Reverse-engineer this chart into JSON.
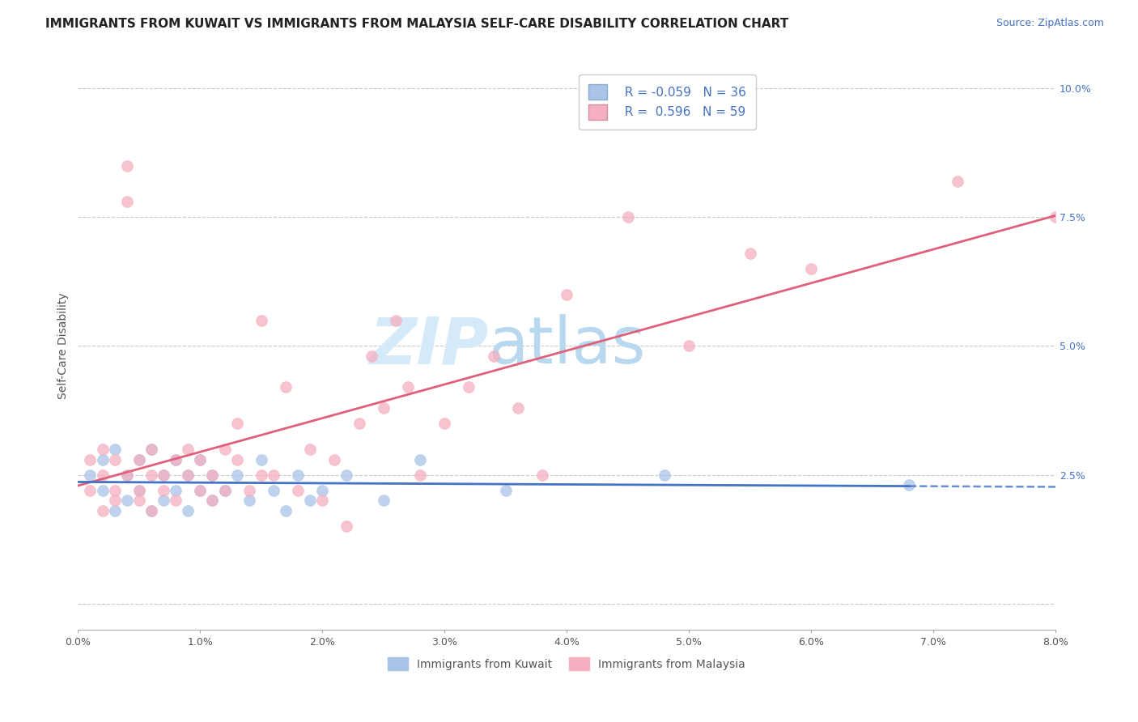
{
  "title": "IMMIGRANTS FROM KUWAIT VS IMMIGRANTS FROM MALAYSIA SELF-CARE DISABILITY CORRELATION CHART",
  "source_text": "Source: ZipAtlas.com",
  "ylabel": "Self-Care Disability",
  "xlim": [
    0.0,
    0.08
  ],
  "ylim": [
    -0.005,
    0.105
  ],
  "yticks": [
    0.0,
    0.025,
    0.05,
    0.075,
    0.1
  ],
  "ytick_labels": [
    "",
    "2.5%",
    "5.0%",
    "7.5%",
    "10.0%"
  ],
  "xticks": [
    0.0,
    0.01,
    0.02,
    0.03,
    0.04,
    0.05,
    0.06,
    0.07,
    0.08
  ],
  "xtick_labels": [
    "0.0%",
    "1.0%",
    "2.0%",
    "3.0%",
    "4.0%",
    "5.0%",
    "6.0%",
    "7.0%",
    "8.0%"
  ],
  "kuwait_R": -0.059,
  "kuwait_N": 36,
  "malaysia_R": 0.596,
  "malaysia_N": 59,
  "kuwait_color": "#aac4e8",
  "malaysia_color": "#f5afc0",
  "kuwait_line_color": "#4472c4",
  "malaysia_line_color": "#e0607a",
  "background_color": "#ffffff",
  "grid_color": "#cccccc",
  "watermark_color": "#d5eaf8",
  "legend_color": "#4472c4",
  "kuwait_x": [
    0.001,
    0.002,
    0.002,
    0.003,
    0.003,
    0.004,
    0.004,
    0.005,
    0.005,
    0.006,
    0.006,
    0.007,
    0.007,
    0.008,
    0.008,
    0.009,
    0.009,
    0.01,
    0.01,
    0.011,
    0.011,
    0.012,
    0.013,
    0.014,
    0.015,
    0.016,
    0.017,
    0.018,
    0.019,
    0.02,
    0.022,
    0.025,
    0.028,
    0.035,
    0.048,
    0.068
  ],
  "kuwait_y": [
    0.025,
    0.028,
    0.022,
    0.03,
    0.018,
    0.025,
    0.02,
    0.028,
    0.022,
    0.03,
    0.018,
    0.025,
    0.02,
    0.022,
    0.028,
    0.025,
    0.018,
    0.022,
    0.028,
    0.025,
    0.02,
    0.022,
    0.025,
    0.02,
    0.028,
    0.022,
    0.018,
    0.025,
    0.02,
    0.022,
    0.025,
    0.02,
    0.028,
    0.022,
    0.025,
    0.023
  ],
  "malaysia_x": [
    0.001,
    0.001,
    0.002,
    0.002,
    0.002,
    0.003,
    0.003,
    0.003,
    0.004,
    0.004,
    0.004,
    0.005,
    0.005,
    0.005,
    0.006,
    0.006,
    0.006,
    0.007,
    0.007,
    0.008,
    0.008,
    0.009,
    0.009,
    0.01,
    0.01,
    0.011,
    0.011,
    0.012,
    0.012,
    0.013,
    0.013,
    0.014,
    0.015,
    0.015,
    0.016,
    0.017,
    0.018,
    0.019,
    0.02,
    0.021,
    0.022,
    0.023,
    0.024,
    0.025,
    0.026,
    0.027,
    0.028,
    0.03,
    0.032,
    0.034,
    0.036,
    0.038,
    0.04,
    0.045,
    0.05,
    0.055,
    0.06,
    0.072,
    0.08
  ],
  "malaysia_y": [
    0.022,
    0.028,
    0.025,
    0.018,
    0.03,
    0.022,
    0.028,
    0.02,
    0.085,
    0.025,
    0.078,
    0.022,
    0.028,
    0.02,
    0.025,
    0.018,
    0.03,
    0.022,
    0.025,
    0.028,
    0.02,
    0.025,
    0.03,
    0.022,
    0.028,
    0.025,
    0.02,
    0.03,
    0.022,
    0.028,
    0.035,
    0.022,
    0.025,
    0.055,
    0.025,
    0.042,
    0.022,
    0.03,
    0.02,
    0.028,
    0.015,
    0.035,
    0.048,
    0.038,
    0.055,
    0.042,
    0.025,
    0.035,
    0.042,
    0.048,
    0.038,
    0.025,
    0.06,
    0.075,
    0.05,
    0.068,
    0.065,
    0.082,
    0.075
  ],
  "marker_size": 100,
  "title_fontsize": 11,
  "axis_label_fontsize": 10,
  "tick_fontsize": 9,
  "legend_fontsize": 11
}
